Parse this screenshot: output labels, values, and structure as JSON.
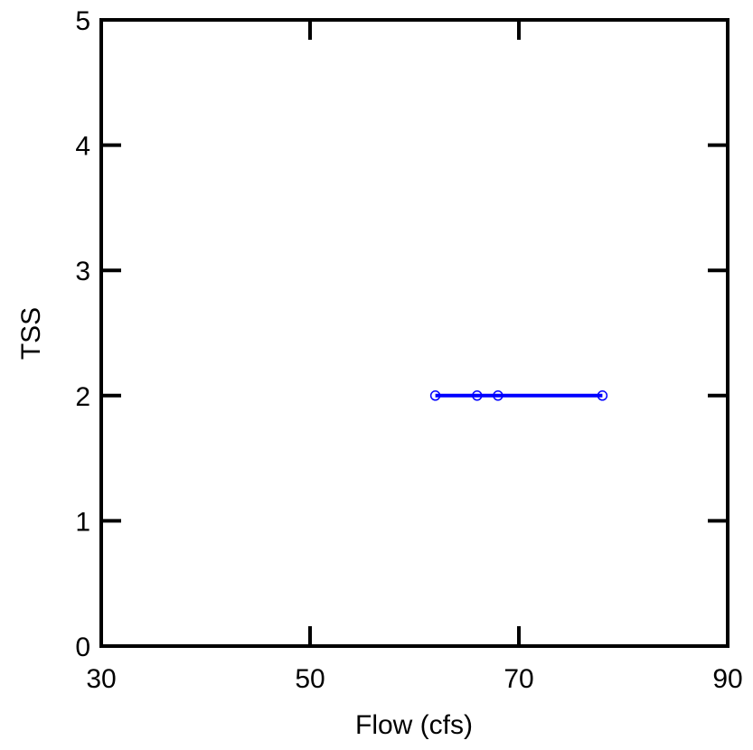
{
  "chart_data": {
    "type": "line",
    "title": "",
    "xlabel": "Flow (cfs)",
    "ylabel": "TSS",
    "xlim": [
      30,
      90
    ],
    "ylim": [
      0,
      5
    ],
    "x_ticks": [
      30,
      50,
      70,
      90
    ],
    "y_ticks": [
      0,
      1,
      2,
      3,
      4,
      5
    ],
    "x_tick_labels": [
      "30",
      "50",
      "70",
      "90"
    ],
    "y_tick_labels": [
      "0",
      "1",
      "2",
      "3",
      "4",
      "5"
    ],
    "grid": false,
    "legend": "none",
    "series": [
      {
        "color": "#0000ff",
        "marker": "open-circle",
        "line": "solid",
        "points": [
          {
            "x": 62,
            "y": 2
          },
          {
            "x": 66,
            "y": 2
          },
          {
            "x": 68,
            "y": 2
          },
          {
            "x": 78,
            "y": 2
          }
        ]
      }
    ]
  }
}
